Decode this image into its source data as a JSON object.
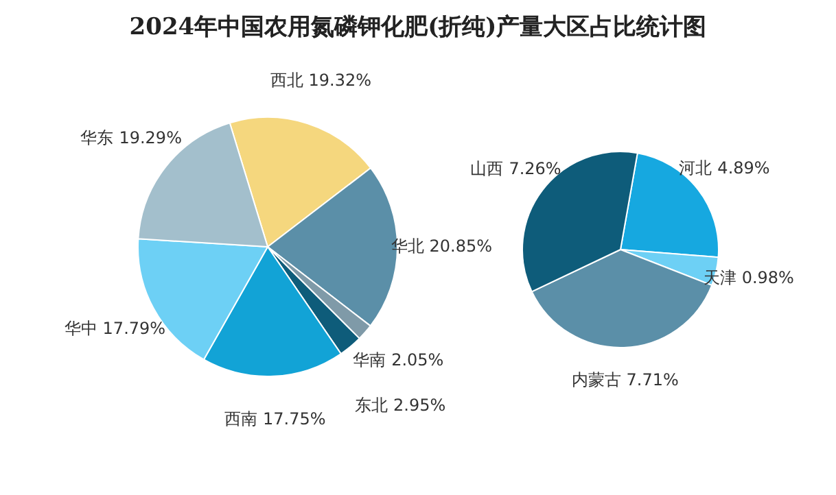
{
  "chart_data": [
    {
      "type": "pie",
      "title": "2024年中国农用氮磷钾化肥(折纯)产量大区占比统计图",
      "categories": [
        "西北",
        "华北",
        "华南",
        "东北",
        "西南",
        "华中",
        "华东"
      ],
      "values": [
        19.32,
        20.85,
        2.05,
        2.95,
        17.75,
        17.79,
        19.29
      ],
      "value_labels": [
        "19.32%",
        "20.85%",
        "2.05%",
        "2.95%",
        "17.75%",
        "17.79%",
        "19.29%"
      ],
      "colors": [
        "#f5d77e",
        "#5b8fa8",
        "#7f9aa8",
        "#0e5c7a",
        "#12a3d6",
        "#6dd0f5",
        "#a3bfcc"
      ]
    },
    {
      "type": "pie",
      "categories": [
        "河北",
        "天津",
        "内蒙古",
        "山西"
      ],
      "values": [
        4.89,
        0.98,
        7.71,
        7.26
      ],
      "value_labels": [
        "4.89%",
        "0.98%",
        "7.71%",
        "7.26%"
      ],
      "colors": [
        "#16a8e0",
        "#6dd0f5",
        "#5b8fa8",
        "#0e5c7a"
      ]
    }
  ]
}
